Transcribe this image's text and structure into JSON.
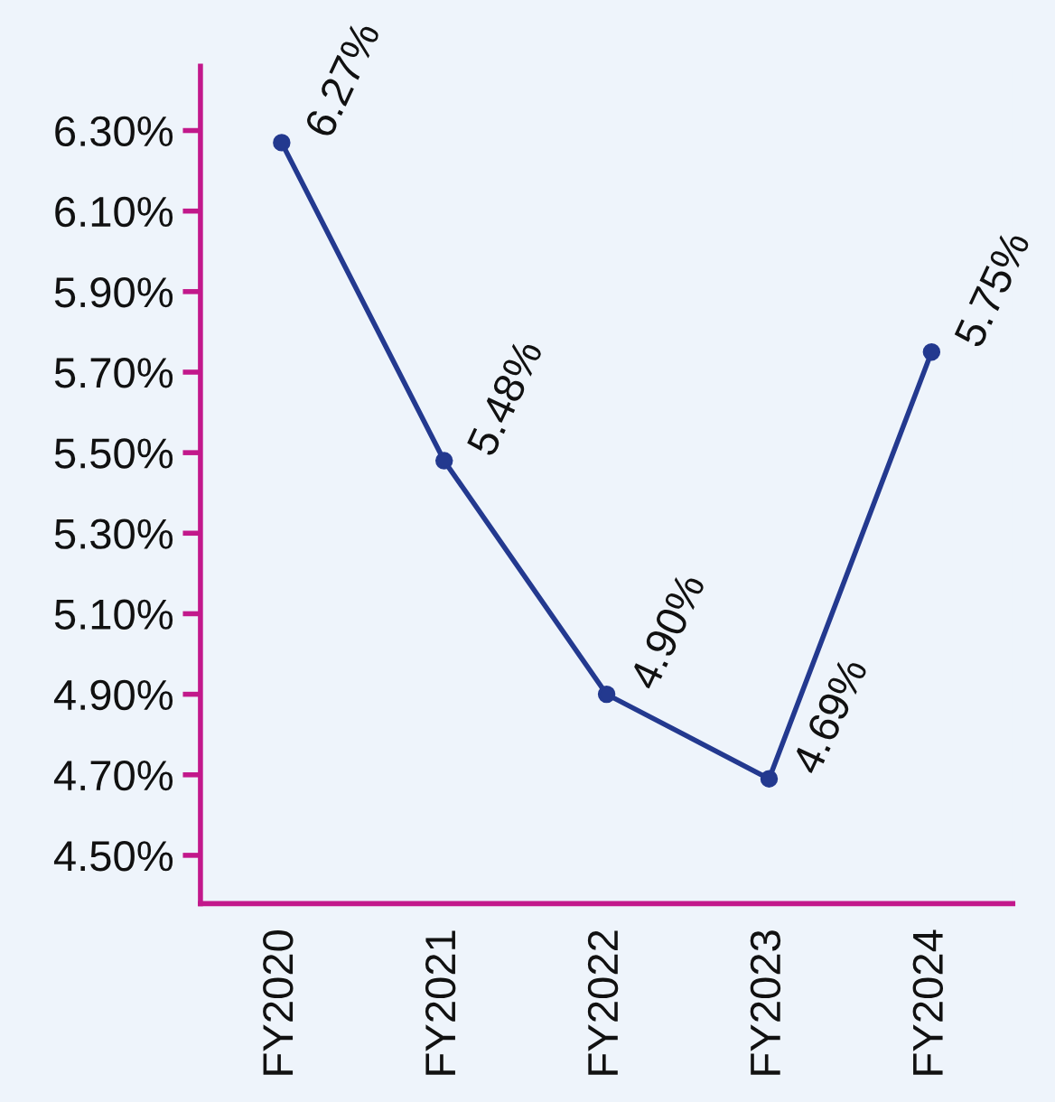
{
  "chart_data": {
    "type": "line",
    "categories": [
      "FY2020",
      "FY2021",
      "FY2022",
      "FY2023",
      "FY2024"
    ],
    "series": [
      {
        "color": "#23398f",
        "values": [
          6.27,
          5.48,
          4.9,
          4.69,
          5.75
        ],
        "value_labels": [
          "6.27%",
          "5.48%",
          "4.90%",
          "4.69%",
          "5.75%"
        ]
      }
    ],
    "ylim": [
      4.38,
      6.46
    ],
    "yticks": [
      {
        "value": 4.5,
        "label": "4.50%"
      },
      {
        "value": 4.7,
        "label": "4.70%"
      },
      {
        "value": 4.9,
        "label": "4.90%"
      },
      {
        "value": 5.1,
        "label": "5.10%"
      },
      {
        "value": 5.3,
        "label": "5.30%"
      },
      {
        "value": 5.5,
        "label": "5.50%"
      },
      {
        "value": 5.7,
        "label": "5.70%"
      },
      {
        "value": 5.9,
        "label": "5.90%"
      },
      {
        "value": 6.1,
        "label": "6.10%"
      },
      {
        "value": 6.3,
        "label": "6.30%"
      }
    ],
    "marker": "circle",
    "line_style": "solid",
    "grid": false,
    "legend": false
  }
}
